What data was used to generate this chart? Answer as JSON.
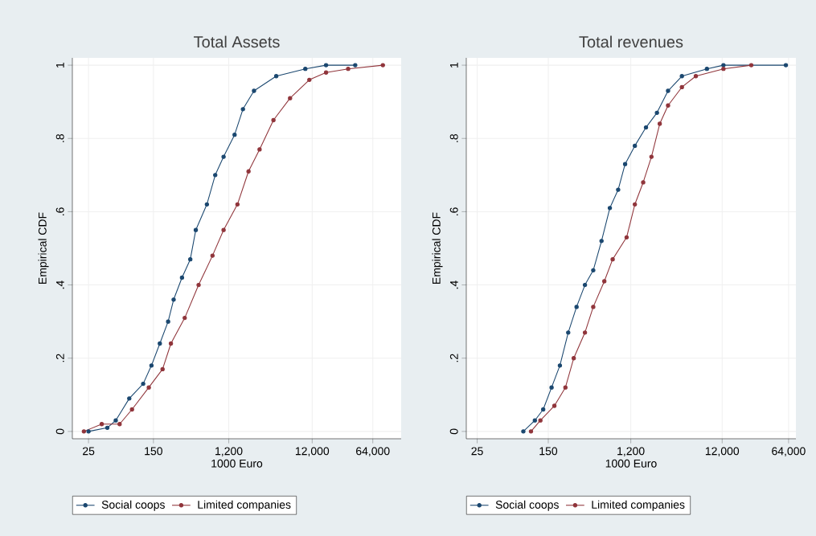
{
  "chart_data": [
    {
      "type": "line",
      "title": "Total Assets",
      "xlabel": "1000 Euro",
      "ylabel": "Empirical CDF",
      "log": "x",
      "grid": true,
      "legend": "bottom",
      "marker": "circle",
      "line_style": "solid",
      "xlim": [
        16,
        140000
      ],
      "xticks": [
        25,
        150,
        {
          "value": 1200,
          "label": "1,200"
        },
        {
          "value": 12000,
          "label": "12,000"
        },
        {
          "value": 64000,
          "label": "64,000"
        }
      ],
      "ylim": [
        -0.02,
        1.02
      ],
      "yticks": [
        0,
        {
          "value": 0.2,
          "label": ".2"
        },
        {
          "value": 0.4,
          "label": ".4"
        },
        {
          "value": 0.6,
          "label": ".6"
        },
        {
          "value": 0.8,
          "label": ".8"
        },
        1
      ],
      "series": [
        {
          "name": "Social coops",
          "color": "#1a476f",
          "x": [
            25,
            42,
            53,
            77,
            113,
            142,
            179,
            225,
            262,
            330,
            415,
            483,
            656,
            826,
            1040,
            1410,
            1775,
            2410,
            4450,
            9930,
            17600,
            39400
          ],
          "values": [
            0,
            0.01,
            0.03,
            0.09,
            0.13,
            0.18,
            0.24,
            0.3,
            0.36,
            0.42,
            0.47,
            0.55,
            0.62,
            0.7,
            0.75,
            0.81,
            0.88,
            0.93,
            0.97,
            0.99,
            1,
            1
          ]
        },
        {
          "name": "Limited companies",
          "color": "#90353b",
          "x": [
            22,
            36,
            59,
            83,
            132,
            193,
            243,
            356,
            522,
            766,
            1040,
            1525,
            2070,
            2810,
            4120,
            6520,
            11100,
            17600,
            32400,
            84500
          ],
          "values": [
            0,
            0.02,
            0.02,
            0.06,
            0.12,
            0.17,
            0.24,
            0.31,
            0.4,
            0.48,
            0.55,
            0.62,
            0.71,
            0.77,
            0.85,
            0.91,
            0.96,
            0.98,
            0.99,
            1
          ]
        }
      ]
    },
    {
      "type": "line",
      "title": "Total revenues",
      "xlabel": "1000 Euro",
      "ylabel": "Empirical CDF",
      "log": "x",
      "grid": true,
      "legend": "bottom",
      "marker": "circle",
      "line_style": "solid",
      "xlim": [
        19,
        77000
      ],
      "xticks": [
        25,
        150,
        {
          "value": 1200,
          "label": "1,200"
        },
        {
          "value": 12000,
          "label": "12,000"
        },
        {
          "value": 64000,
          "label": "64,000"
        }
      ],
      "ylim": [
        -0.02,
        1.02
      ],
      "yticks": [
        0,
        {
          "value": 0.2,
          "label": ".2"
        },
        {
          "value": 0.4,
          "label": ".4"
        },
        {
          "value": 0.6,
          "label": ".6"
        },
        {
          "value": 0.8,
          "label": ".8"
        },
        1
      ],
      "series": [
        {
          "name": "Social coops",
          "color": "#1a476f",
          "x": [
            80,
            107,
            132,
            163,
            201,
            248,
            306,
            378,
            466,
            574,
            708,
            873,
            1040,
            1330,
            1760,
            2320,
            3070,
            4350,
            8170,
            12400,
            59800
          ],
          "values": [
            0,
            0.03,
            0.06,
            0.12,
            0.18,
            0.27,
            0.34,
            0.4,
            0.44,
            0.52,
            0.61,
            0.66,
            0.73,
            0.78,
            0.83,
            0.87,
            0.93,
            0.97,
            0.99,
            1,
            1
          ]
        },
        {
          "name": "Limited companies",
          "color": "#90353b",
          "x": [
            97,
            123,
            175,
            231,
            285,
            378,
            466,
            616,
            760,
            1080,
            1330,
            1640,
            2020,
            2490,
            3070,
            4350,
            6180,
            12400,
            25000
          ],
          "values": [
            0,
            0.03,
            0.07,
            0.12,
            0.2,
            0.27,
            0.34,
            0.41,
            0.47,
            0.53,
            0.62,
            0.68,
            0.75,
            0.84,
            0.89,
            0.94,
            0.97,
            0.99,
            1
          ]
        }
      ]
    }
  ]
}
